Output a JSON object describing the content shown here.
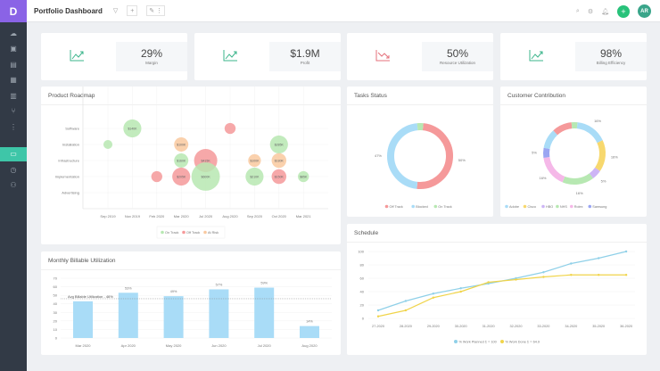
{
  "app": {
    "logo": "D",
    "title": "Portfolio Dashboard",
    "avatar": "AR"
  },
  "toolbar": {
    "filter_icon": "filter-icon",
    "add": "+",
    "edit": "✎",
    "more": "⋮"
  },
  "sidebar": {
    "items": [
      "cloud-icon",
      "briefcase-icon",
      "clipboard-icon",
      "cards-icon",
      "document-icon",
      "branch-icon",
      "more-icon",
      "dashboard-icon",
      "clock-icon",
      "user-settings-icon"
    ],
    "active": 7
  },
  "kpis": [
    {
      "value": "29%",
      "label": "Margin",
      "trend": "up",
      "color": "#3bb58b"
    },
    {
      "value": "$1.9M",
      "label": "Profit",
      "trend": "up",
      "color": "#3bb58b"
    },
    {
      "value": "50%",
      "label": "Resource Utilization",
      "trend": "down",
      "color": "#e5707b"
    },
    {
      "value": "98%",
      "label": "Billing Efficiency",
      "trend": "up",
      "color": "#3bb58b"
    }
  ],
  "colors": {
    "on_track": "#b7e8b2",
    "off_track": "#f5999a",
    "at_risk": "#f9c99f",
    "blue": "#a9dcf7",
    "yellow": "#f5d865"
  },
  "chart_data": [
    {
      "type": "scatter",
      "title": "Product Roadmap",
      "x_categories": [
        "Sep 2019",
        "Nov 2019",
        "Feb 2020",
        "Mar 2020",
        "Jul 2020",
        "Aug 2020",
        "Sep 2020",
        "Oct 2020",
        "Mar 2021"
      ],
      "y_categories": [
        "Software",
        "Installation",
        "Infrastructure",
        "Implementation",
        "Advertising"
      ],
      "legend": [
        "On Track",
        "Off Track",
        "At Risk"
      ],
      "points": [
        {
          "x": "Nov 2019",
          "y": "Software",
          "size": 240,
          "label": "$140K",
          "status": "On Track"
        },
        {
          "x": "Sep 2019",
          "y": "Installation",
          "size": 60,
          "label": "",
          "status": "On Track"
        },
        {
          "x": "Mar 2020",
          "y": "Installation",
          "size": 150,
          "label": "$100K",
          "status": "At Risk"
        },
        {
          "x": "Mar 2020",
          "y": "Infrastructure",
          "size": 150,
          "label": "$160K",
          "status": "On Track"
        },
        {
          "x": "Mar 2020",
          "y": "Implementation",
          "size": 240,
          "label": "$205K",
          "status": "Off Track"
        },
        {
          "x": "Jul 2020",
          "y": "Infrastructure",
          "size": 400,
          "label": "$415K",
          "status": "Off Track"
        },
        {
          "x": "Jul 2020",
          "y": "Implementation",
          "size": 600,
          "label": "$600K",
          "status": "On Track"
        },
        {
          "x": "Aug 2020",
          "y": "Software",
          "size": 90,
          "label": "",
          "status": "Off Track"
        },
        {
          "x": "Feb 2020",
          "y": "Implementation",
          "size": 90,
          "label": "",
          "status": "Off Track"
        },
        {
          "x": "Sep 2020",
          "y": "Infrastructure",
          "size": 120,
          "label": "$100K",
          "status": "At Risk"
        },
        {
          "x": "Sep 2020",
          "y": "Implementation",
          "size": 240,
          "label": "$210K",
          "status": "On Track"
        },
        {
          "x": "Oct 2020",
          "y": "Installation",
          "size": 240,
          "label": "$285K",
          "status": "On Track"
        },
        {
          "x": "Oct 2020",
          "y": "Infrastructure",
          "size": 160,
          "label": "$180K",
          "status": "At Risk"
        },
        {
          "x": "Oct 2020",
          "y": "Implementation",
          "size": 160,
          "label": "$150K",
          "status": "Off Track"
        },
        {
          "x": "Mar 2021",
          "y": "Implementation",
          "size": 90,
          "label": "$85K",
          "status": "On Track"
        }
      ]
    },
    {
      "type": "pie",
      "title": "Tasks Status",
      "donut": true,
      "slices": [
        {
          "name": "Off Track",
          "value": 50,
          "label": "50%",
          "color": "#f5999a"
        },
        {
          "name": "Blocked",
          "value": 47,
          "label": "47%",
          "color": "#a9dcf7"
        },
        {
          "name": "On Track",
          "value": 3,
          "label": "",
          "color": "#b7e8b2"
        }
      ]
    },
    {
      "type": "pie",
      "title": "Customer Contribution",
      "donut": true,
      "slices": [
        {
          "name": "Adobe",
          "value": 16,
          "label": "16%",
          "color": "#a9dcf7"
        },
        {
          "name": "Cisco",
          "value": 16,
          "label": "16%",
          "color": "#f7d86e"
        },
        {
          "name": "HBO",
          "value": 5,
          "label": "5%",
          "color": "#cdb5f5"
        },
        {
          "name": "NHS",
          "value": 16,
          "label": "16%",
          "color": "#b7e8b2"
        },
        {
          "name": "Rolex",
          "value": 16,
          "label": "16%",
          "color": "#f5b8e8"
        },
        {
          "name": "Samsung",
          "value": 5,
          "label": "5%",
          "color": "#9aa5f2"
        },
        {
          "name": "",
          "value": 10,
          "label": "",
          "color": "#a9dcf7"
        },
        {
          "name": "",
          "value": 10,
          "label": "",
          "color": "#f5999a"
        },
        {
          "name": "",
          "value": 3,
          "label": "",
          "color": "#b7e8b2"
        }
      ]
    },
    {
      "type": "bar",
      "title": "Monthly Billable Utilization",
      "categories": [
        "Mar 2020",
        "Apr 2020",
        "May 2020",
        "Jun 2020",
        "Jul 2020",
        "Aug 2020"
      ],
      "values": [
        43,
        53,
        49,
        57,
        59,
        14
      ],
      "labels": [
        "43%",
        "53%",
        "49%",
        "57%",
        "59%",
        "14%"
      ],
      "ylim": [
        0,
        70
      ],
      "yticks": [
        0,
        10,
        20,
        30,
        40,
        50,
        60,
        70
      ],
      "reference_line": {
        "value": 46,
        "label": "Avg Billable Utilization - 46%"
      }
    },
    {
      "type": "line",
      "title": "Schedule",
      "categories": [
        "27-2020",
        "28-2020",
        "29-2020",
        "30-2020",
        "31-2020",
        "32-2020",
        "33-2020",
        "34-2020",
        "35-2020",
        "36-2020"
      ],
      "ylim": [
        0,
        100
      ],
      "yticks": [
        0,
        20,
        40,
        60,
        80,
        100
      ],
      "series": [
        {
          "name": "% Work Planned Σ = 100",
          "values": [
            12,
            26,
            37,
            45,
            52,
            60,
            69,
            82,
            90,
            100
          ],
          "color": "#8fd0e8"
        },
        {
          "name": "% Work Done Σ = 64.9",
          "values": [
            3,
            12,
            31,
            40,
            54,
            58,
            62,
            65,
            65,
            65
          ],
          "color": "#f0d44a"
        }
      ]
    }
  ]
}
